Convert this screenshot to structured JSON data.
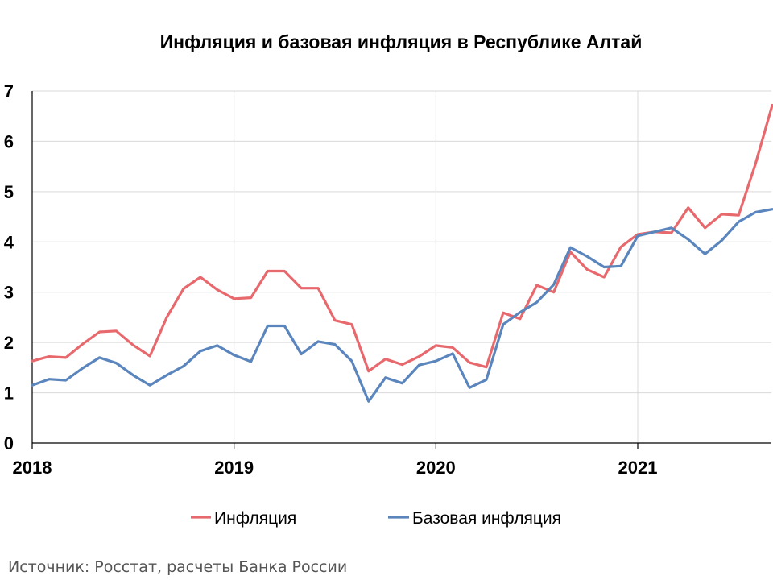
{
  "source_note": "Источник: Росстат, расчеты Банка России",
  "chart_data": {
    "type": "line",
    "title": "Инфляция и базовая инфляция в Республике Алтай",
    "xlabel": "",
    "ylabel": "",
    "ylim": [
      0,
      7
    ],
    "yticks": [
      "0",
      "1",
      "2",
      "3",
      "4",
      "5",
      "6",
      "7"
    ],
    "xticks": [
      "2018",
      "2019",
      "2020",
      "2021"
    ],
    "grid": true,
    "legend_position": "bottom",
    "x_start": "2018-01",
    "series": [
      {
        "name": "Инфляция",
        "color": "#e8696d",
        "values": [
          1.63,
          1.72,
          1.7,
          1.97,
          2.21,
          2.23,
          1.95,
          1.73,
          2.5,
          3.07,
          3.3,
          3.05,
          2.87,
          2.89,
          3.42,
          3.42,
          3.08,
          3.08,
          2.44,
          2.36,
          1.43,
          1.67,
          1.56,
          1.72,
          1.94,
          1.9,
          1.6,
          1.51,
          2.59,
          2.47,
          3.14,
          3.0,
          3.8,
          3.45,
          3.3,
          3.9,
          4.15,
          4.2,
          4.18,
          4.68,
          4.28,
          4.55,
          4.53,
          5.55,
          6.72
        ]
      },
      {
        "name": "Базовая инфляция",
        "color": "#5a85bd",
        "values": [
          1.15,
          1.27,
          1.25,
          1.49,
          1.7,
          1.59,
          1.35,
          1.15,
          1.35,
          1.53,
          1.83,
          1.94,
          1.75,
          1.62,
          2.33,
          2.33,
          1.77,
          2.02,
          1.96,
          1.63,
          0.83,
          1.3,
          1.19,
          1.55,
          1.63,
          1.78,
          1.1,
          1.26,
          2.36,
          2.6,
          2.8,
          3.15,
          3.89,
          3.71,
          3.5,
          3.52,
          4.12,
          4.2,
          4.28,
          4.05,
          3.76,
          4.03,
          4.4,
          4.59,
          4.65
        ]
      }
    ]
  }
}
